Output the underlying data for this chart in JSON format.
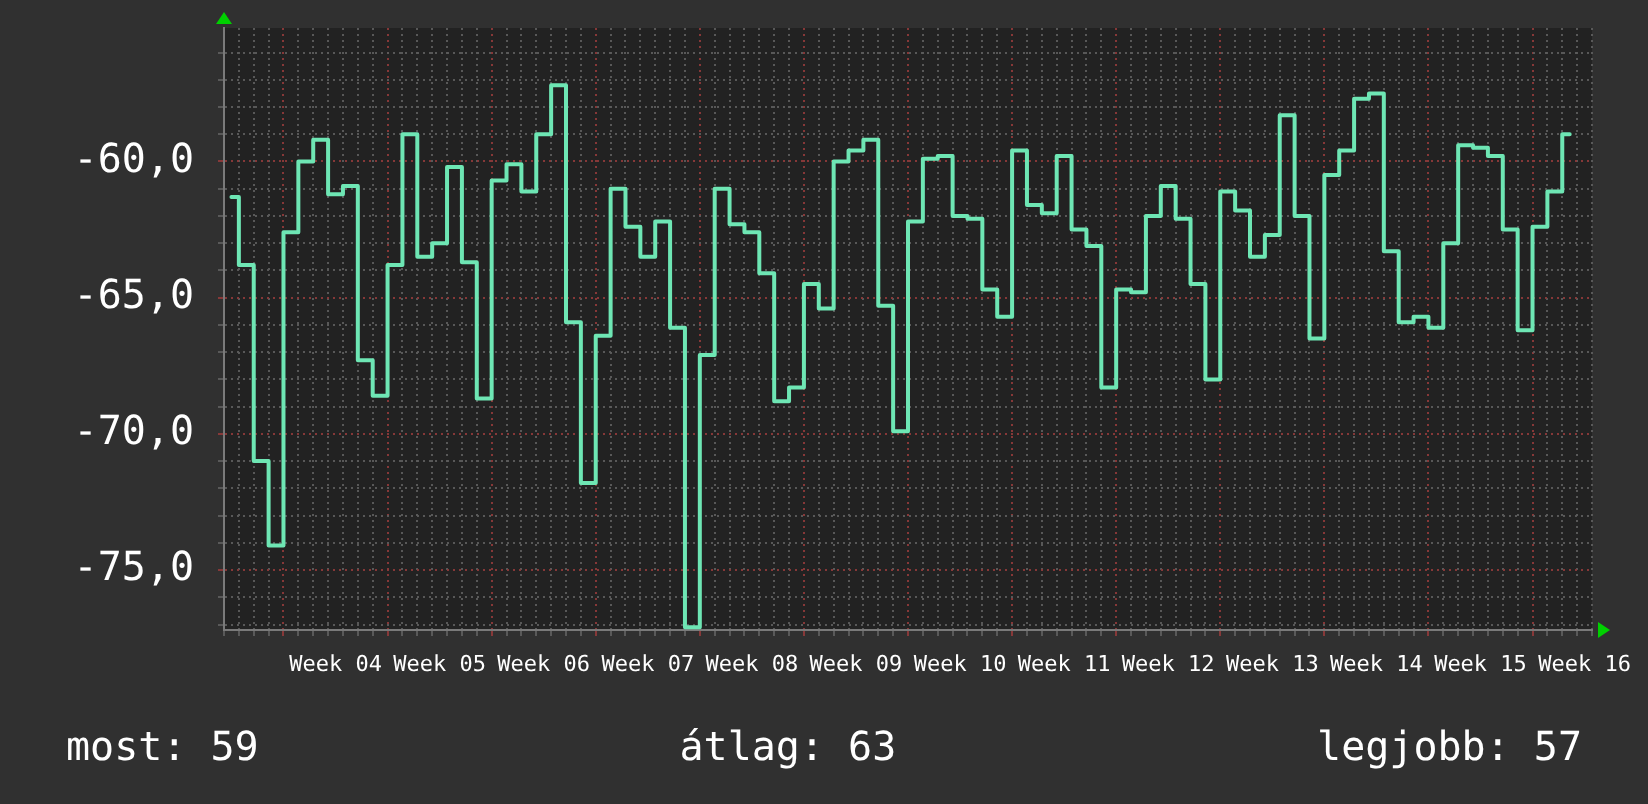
{
  "chart_data": {
    "type": "step",
    "categories": [
      null,
      null,
      null,
      null,
      null,
      null,
      null,
      "Week 04",
      null,
      null,
      null,
      null,
      null,
      null,
      "Week 05",
      null,
      null,
      null,
      null,
      null,
      null,
      "Week 06",
      null,
      null,
      null,
      null,
      null,
      null,
      "Week 07",
      null,
      null,
      null,
      null,
      null,
      null,
      "Week 08",
      null,
      null,
      null,
      null,
      null,
      null,
      "Week 09",
      null,
      null,
      null,
      null,
      null,
      null,
      "Week 10",
      null,
      null,
      null,
      null,
      null,
      null,
      "Week 11",
      null,
      null,
      null,
      null,
      null,
      null,
      "Week 12",
      null,
      null,
      null,
      null,
      null,
      null,
      "Week 13",
      null,
      null,
      null,
      null,
      null,
      null,
      "Week 14",
      null,
      null,
      null,
      null,
      null,
      null,
      "Week 15",
      null,
      null,
      null,
      null,
      null,
      null,
      "Week 16"
    ],
    "values": [
      -61.3,
      -63.8,
      -71.0,
      -74.1,
      -62.6,
      -60.0,
      -59.2,
      -61.2,
      -60.9,
      -67.3,
      -68.6,
      -63.8,
      -59.0,
      -63.5,
      -63.0,
      -60.2,
      -63.7,
      -68.7,
      -60.7,
      -60.1,
      -61.1,
      -59.0,
      -57.2,
      -65.9,
      -71.8,
      -66.4,
      -61.0,
      -62.4,
      -63.5,
      -62.2,
      -66.1,
      -77.1,
      -67.1,
      -61.0,
      -62.3,
      -62.6,
      -64.1,
      -68.8,
      -68.3,
      -64.5,
      -65.4,
      -60.0,
      -59.6,
      -59.2,
      -65.3,
      -69.9,
      -62.2,
      -59.9,
      -59.8,
      -62.0,
      -62.1,
      -64.7,
      -65.7,
      -59.6,
      -61.6,
      -61.9,
      -59.8,
      -62.5,
      -63.1,
      -68.3,
      -64.7,
      -64.8,
      -62.0,
      -60.9,
      -62.1,
      -64.5,
      -68.0,
      -61.1,
      -61.8,
      -63.5,
      -62.7,
      -58.3,
      -62.0,
      -66.5,
      -60.5,
      -59.6,
      -57.7,
      -57.5,
      -63.3,
      -65.9,
      -65.7,
      -66.1,
      -63.0,
      -59.4,
      -59.5,
      -59.8,
      -62.5,
      -66.2,
      -62.4,
      -61.1,
      -59.0,
      null
    ],
    "color": "#6ee6b4",
    "ylim": [
      -77.2,
      -55.1
    ],
    "yticks": [
      {
        "value": -77,
        "label": null
      },
      {
        "value": -76,
        "label": null
      },
      {
        "value": -75,
        "label": "-75,0"
      },
      {
        "value": -74,
        "label": null
      },
      {
        "value": -73,
        "label": null
      },
      {
        "value": -72,
        "label": null
      },
      {
        "value": -71,
        "label": null
      },
      {
        "value": -70,
        "label": "-70,0"
      },
      {
        "value": -69,
        "label": null
      },
      {
        "value": -68,
        "label": null
      },
      {
        "value": -67,
        "label": null
      },
      {
        "value": -66,
        "label": null
      },
      {
        "value": -65,
        "label": "-65,0"
      },
      {
        "value": -64,
        "label": null
      },
      {
        "value": -63,
        "label": null
      },
      {
        "value": -62,
        "label": null
      },
      {
        "value": -61,
        "label": null
      },
      {
        "value": -60,
        "label": "-60,0"
      },
      {
        "value": -59,
        "label": null
      },
      {
        "value": -58,
        "label": null
      },
      {
        "value": -57,
        "label": null
      },
      {
        "value": -56,
        "label": null
      }
    ],
    "grid": true,
    "annotations": [
      "most: 59",
      "átlag: 63",
      "legjobb: 57"
    ]
  }
}
